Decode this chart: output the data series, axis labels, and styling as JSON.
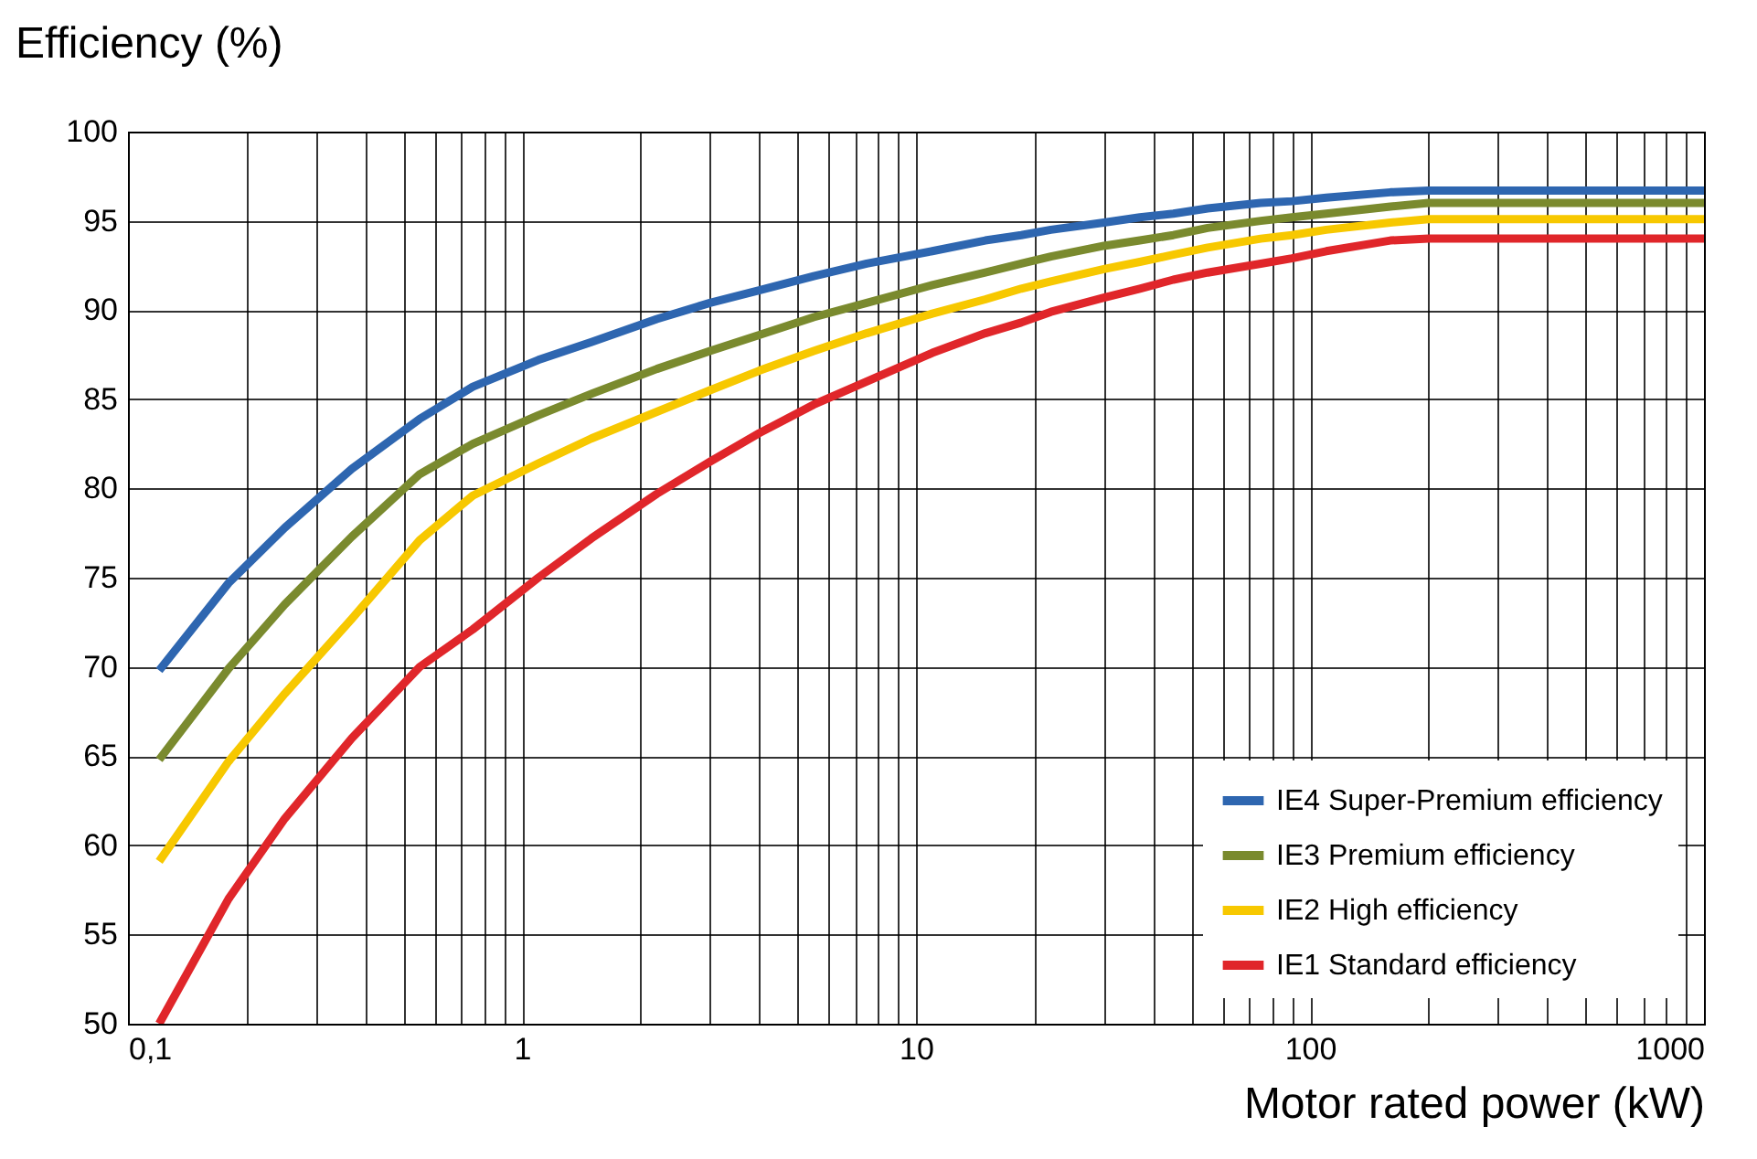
{
  "chart_data": {
    "type": "line",
    "ylabel": "Efficiency (%)",
    "xlabel": "Motor rated power (kW)",
    "x": [
      0.12,
      0.18,
      0.25,
      0.37,
      0.55,
      0.75,
      1.1,
      1.5,
      2.2,
      3,
      4,
      5.5,
      7.5,
      11,
      15,
      18.5,
      22,
      30,
      37,
      45,
      55,
      75,
      90,
      110,
      160,
      200,
      1000
    ],
    "series": [
      {
        "name": "IE4 Super-Premium efficiency",
        "color": "#2e66b0",
        "values": [
          69.8,
          74.7,
          77.8,
          81.1,
          83.9,
          85.7,
          87.2,
          88.2,
          89.5,
          90.4,
          91.1,
          91.9,
          92.6,
          93.3,
          93.9,
          94.2,
          94.5,
          94.9,
          95.2,
          95.4,
          95.7,
          96.0,
          96.1,
          96.3,
          96.6,
          96.7,
          96.7
        ]
      },
      {
        "name": "IE3 Premium efficiency",
        "color": "#7a8a2e",
        "values": [
          64.8,
          69.9,
          73.5,
          77.3,
          80.8,
          82.5,
          84.1,
          85.3,
          86.7,
          87.7,
          88.6,
          89.6,
          90.4,
          91.4,
          92.1,
          92.6,
          93.0,
          93.6,
          93.9,
          94.2,
          94.6,
          95.0,
          95.2,
          95.4,
          95.8,
          96.0,
          96.0
        ]
      },
      {
        "name": "IE2 High efficiency",
        "color": "#f7c800",
        "values": [
          59.1,
          64.7,
          68.5,
          72.7,
          77.1,
          79.6,
          81.4,
          82.8,
          84.3,
          85.5,
          86.6,
          87.7,
          88.7,
          89.8,
          90.6,
          91.2,
          91.6,
          92.3,
          92.7,
          93.1,
          93.5,
          94.0,
          94.2,
          94.5,
          94.9,
          95.1,
          95.1
        ]
      },
      {
        "name": "IE1 Standard efficiency",
        "color": "#e0262a",
        "values": [
          50.0,
          57.0,
          61.5,
          66.0,
          70.0,
          72.1,
          75.0,
          77.2,
          79.7,
          81.5,
          83.1,
          84.7,
          86.0,
          87.6,
          88.7,
          89.3,
          89.9,
          90.7,
          91.2,
          91.7,
          92.1,
          92.6,
          92.9,
          93.3,
          93.9,
          94.0,
          94.0
        ]
      }
    ],
    "log": "x",
    "xlim": [
      0.1,
      1000
    ],
    "xticks": [
      {
        "value": 0.1,
        "label": "0,1"
      },
      {
        "value": 0.2,
        "label": null
      },
      {
        "value": 0.3,
        "label": null
      },
      {
        "value": 0.4,
        "label": null
      },
      {
        "value": 0.5,
        "label": null
      },
      {
        "value": 0.6,
        "label": null
      },
      {
        "value": 0.7,
        "label": null
      },
      {
        "value": 0.8,
        "label": null
      },
      {
        "value": 0.9,
        "label": null
      },
      1,
      {
        "value": 2,
        "label": null
      },
      {
        "value": 3,
        "label": null
      },
      {
        "value": 4,
        "label": null
      },
      {
        "value": 5,
        "label": null
      },
      {
        "value": 6,
        "label": null
      },
      {
        "value": 7,
        "label": null
      },
      {
        "value": 8,
        "label": null
      },
      {
        "value": 9,
        "label": null
      },
      10,
      {
        "value": 20,
        "label": null
      },
      {
        "value": 30,
        "label": null
      },
      {
        "value": 40,
        "label": null
      },
      {
        "value": 50,
        "label": null
      },
      {
        "value": 60,
        "label": null
      },
      {
        "value": 70,
        "label": null
      },
      {
        "value": 80,
        "label": null
      },
      {
        "value": 90,
        "label": null
      },
      100,
      {
        "value": 200,
        "label": null
      },
      {
        "value": 300,
        "label": null
      },
      {
        "value": 400,
        "label": null
      },
      {
        "value": 500,
        "label": null
      },
      {
        "value": 600,
        "label": null
      },
      {
        "value": 700,
        "label": null
      },
      {
        "value": 800,
        "label": null
      },
      {
        "value": 900,
        "label": null
      },
      1000
    ],
    "ylim": [
      50,
      100
    ],
    "yticks": [
      50,
      55,
      60,
      65,
      70,
      75,
      80,
      85,
      90,
      95,
      100
    ],
    "grid": true,
    "legend": "bottom right",
    "marker": "none",
    "line_style": "solid"
  }
}
